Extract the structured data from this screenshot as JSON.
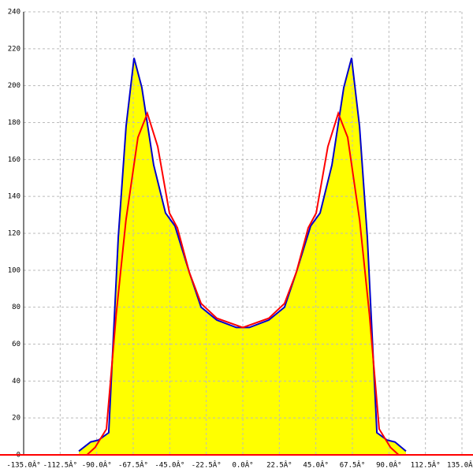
{
  "chart_data": {
    "type": "line",
    "fill_first_series": "#ffff00",
    "zero_line_color": "#ff0000",
    "grid": true,
    "xlim": [
      -135,
      135
    ],
    "xticks": [
      {
        "value": -135,
        "label": "-135.0Â°"
      },
      {
        "value": -112.5,
        "label": "-112.5Â°"
      },
      {
        "value": -90,
        "label": "-90.0Â°"
      },
      {
        "value": -67.5,
        "label": "-67.5Â°"
      },
      {
        "value": -45,
        "label": "-45.0Â°"
      },
      {
        "value": -22.5,
        "label": "-22.5Â°"
      },
      {
        "value": 0,
        "label": "0.0Â°"
      },
      {
        "value": 22.5,
        "label": "22.5Â°"
      },
      {
        "value": 45,
        "label": "45.0Â°"
      },
      {
        "value": 67.5,
        "label": "67.5Â°"
      },
      {
        "value": 90,
        "label": "90.0Â°"
      },
      {
        "value": 112.5,
        "label": "112.5Â°"
      },
      {
        "value": 135,
        "label": "135.0Â°"
      }
    ],
    "ylim": [
      0,
      240
    ],
    "yticks": [
      0,
      20,
      40,
      60,
      80,
      100,
      120,
      140,
      160,
      180,
      200,
      220,
      240
    ],
    "series": [
      {
        "color": "#0000cc",
        "x": [
          -101,
          -93.7,
          -88.9,
          -82.6,
          -76.7,
          -71.9,
          -67,
          -62.2,
          -54.9,
          -47.6,
          -41.8,
          -33,
          -25.7,
          -16,
          -4,
          0,
          4,
          16,
          25.7,
          33,
          41.8,
          47.6,
          54.9,
          62.2,
          67,
          71.9,
          76.7,
          82.6,
          88.9,
          93.7,
          100.5
        ],
        "values": [
          2,
          7,
          8,
          12,
          118,
          178,
          215,
          199,
          157,
          131,
          124,
          99,
          80,
          73,
          69,
          69,
          69,
          73,
          80,
          99,
          124,
          131,
          157,
          199,
          215,
          178,
          118,
          12,
          8,
          7,
          2
        ]
      },
      {
        "color": "#ff0000",
        "x": [
          -96,
          -91,
          -84,
          -78,
          -72,
          -64.6,
          -58.8,
          -52.4,
          -45.2,
          -40.3,
          -33,
          -25.7,
          -16,
          0,
          16,
          25.7,
          33,
          40.3,
          45.2,
          52.4,
          58.8,
          64.6,
          72,
          78,
          84,
          91,
          96
        ],
        "values": [
          0,
          4,
          14,
          76,
          127,
          172,
          185,
          167,
          131,
          123,
          99,
          82,
          74,
          69,
          74,
          82,
          99,
          123,
          131,
          167,
          185,
          172,
          127,
          76,
          14,
          4,
          0
        ]
      }
    ]
  }
}
